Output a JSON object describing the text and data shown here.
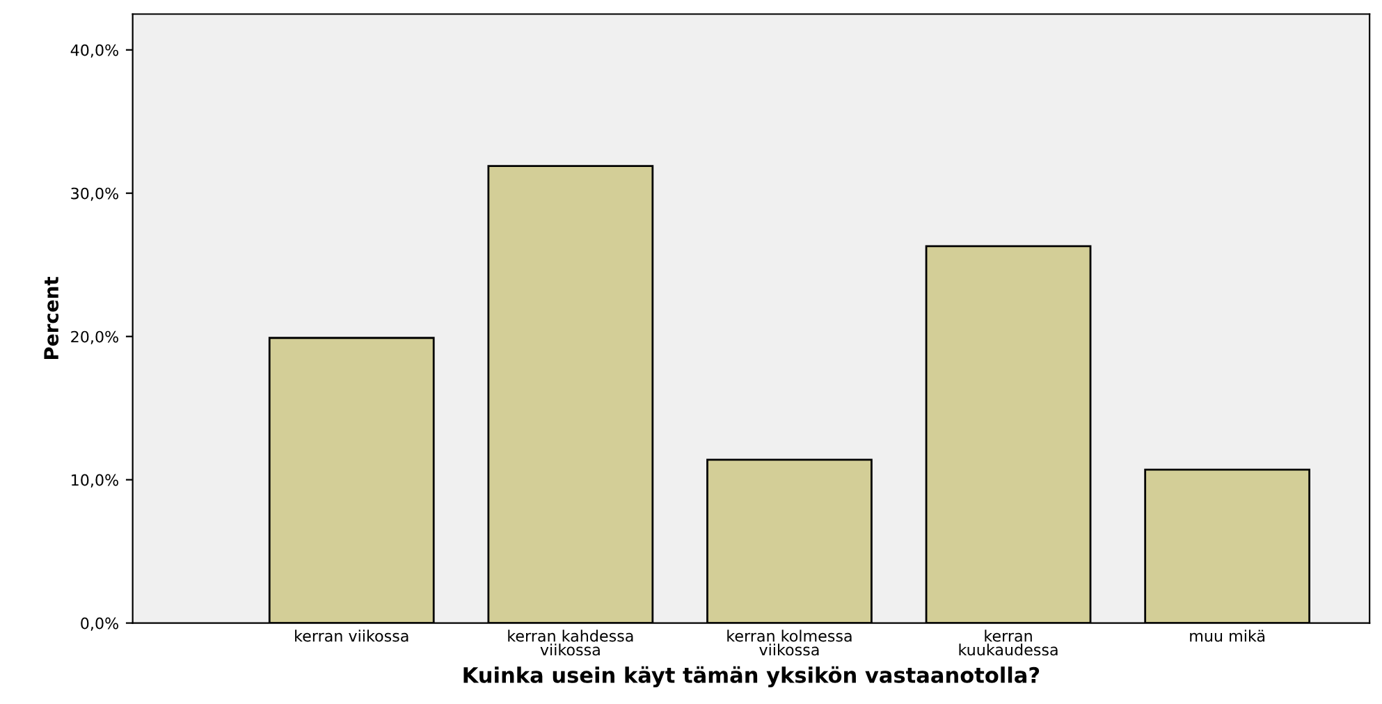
{
  "chart_data": {
    "type": "bar",
    "xlabel": "Kuinka usein käyt tämän yksikön vastaanotolla?",
    "ylabel": "Percent",
    "categories": [
      "kerran viikossa",
      "kerran kahdessa\nviikossa",
      "kerran kolmessa\nviikossa",
      "kerran\nkuukaudessa",
      "muu mikä"
    ],
    "values": [
      19.9,
      31.9,
      11.4,
      26.3,
      10.7
    ],
    "color": "#d3ce97",
    "ylim": [
      0,
      42.5
    ],
    "yticks": [
      {
        "value": 0,
        "label": "0,0%"
      },
      {
        "value": 10,
        "label": "10,0%"
      },
      {
        "value": 20,
        "label": "20,0%"
      },
      {
        "value": 30,
        "label": "30,0%"
      },
      {
        "value": 40,
        "label": "40,0%"
      }
    ],
    "grid": false
  }
}
